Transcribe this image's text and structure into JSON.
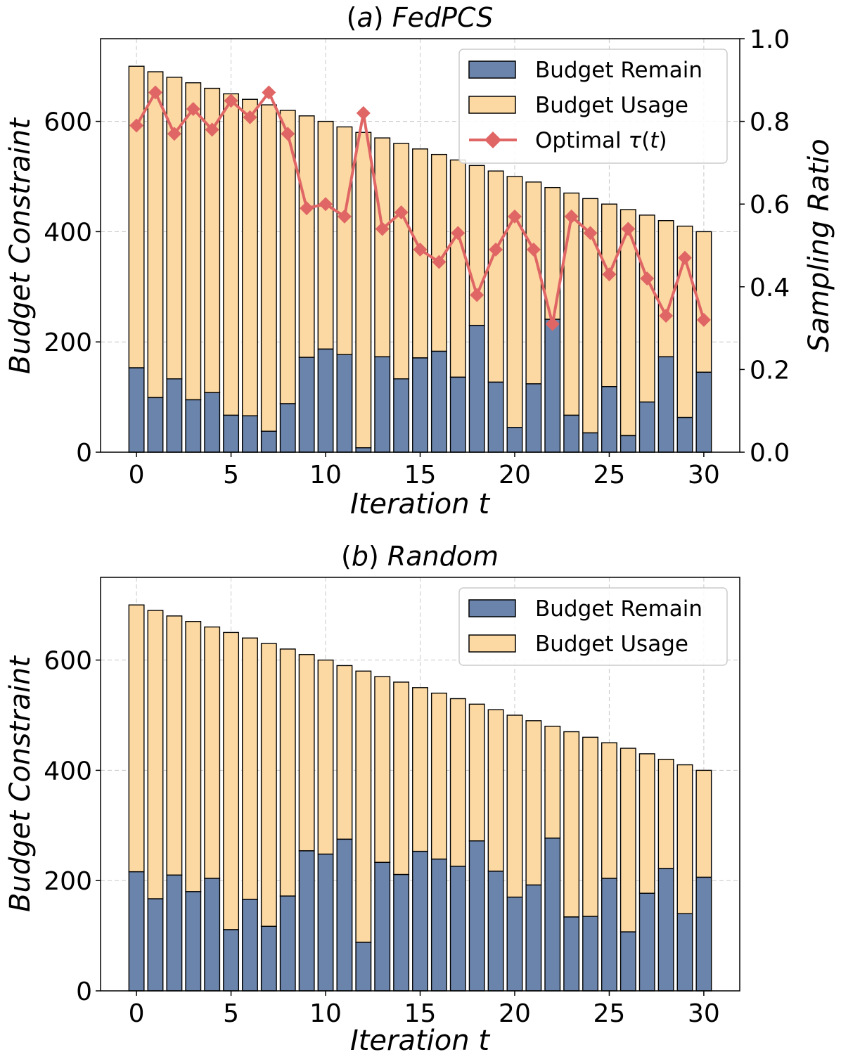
{
  "chart_data": [
    {
      "type": "bar",
      "title_prefix": "(",
      "title_letter": "a",
      "title_suffix": ") ",
      "title_name": "FedPCS",
      "xlabel": "Iteration t",
      "ylabel": "Budget Constraint",
      "ylabel_right": "Sampling Ratio",
      "xlim": [
        -1.9,
        31.9
      ],
      "ylim": [
        0,
        750
      ],
      "ylim_right": [
        0,
        1.0
      ],
      "x_ticks": [
        "0",
        "5",
        "10",
        "15",
        "20",
        "25",
        "30"
      ],
      "y_ticks": [
        "0",
        "200",
        "400",
        "600"
      ],
      "y_ticks_right": [
        "0.0",
        "0.2",
        "0.4",
        "0.6",
        "0.8",
        "1.0"
      ],
      "grid": true,
      "legend_position": "top-right",
      "x": [
        0,
        1,
        2,
        3,
        4,
        5,
        6,
        7,
        8,
        9,
        10,
        11,
        12,
        13,
        14,
        15,
        16,
        17,
        18,
        19,
        20,
        21,
        22,
        23,
        24,
        25,
        26,
        27,
        28,
        29,
        30
      ],
      "series": [
        {
          "name": "Budget Remain",
          "color": "#6b84ab",
          "values": [
            153,
            99,
            133,
            95,
            108,
            67,
            66,
            38,
            88,
            172,
            187,
            177,
            8,
            173,
            133,
            171,
            183,
            136,
            230,
            127,
            45,
            124,
            241,
            67,
            35,
            119,
            30,
            91,
            173,
            63,
            145
          ]
        },
        {
          "name": "Budget Usage",
          "color": "#fcd9a2",
          "stack_total": [
            700,
            690,
            680,
            670,
            660,
            650,
            640,
            630,
            620,
            610,
            600,
            590,
            580,
            570,
            560,
            550,
            540,
            530,
            520,
            510,
            500,
            490,
            480,
            470,
            460,
            450,
            440,
            430,
            420,
            410,
            400
          ]
        },
        {
          "name_prefix": "Optimal ",
          "name_symbol": "τ",
          "name_paren_open": "(",
          "name_var": "t",
          "name_paren_close": ")",
          "type": "line",
          "axis": "right",
          "color": "#e06666",
          "marker": "diamond",
          "values": [
            0.79,
            0.87,
            0.77,
            0.83,
            0.78,
            0.85,
            0.81,
            0.87,
            0.77,
            0.59,
            0.6,
            0.57,
            0.82,
            0.54,
            0.58,
            0.49,
            0.46,
            0.53,
            0.38,
            0.49,
            0.57,
            0.49,
            0.31,
            0.57,
            0.53,
            0.43,
            0.54,
            0.42,
            0.33,
            0.47,
            0.32
          ]
        }
      ]
    },
    {
      "type": "bar",
      "title_prefix": "(",
      "title_letter": "b",
      "title_suffix": ") ",
      "title_name": "Random",
      "xlabel": "Iteration t",
      "ylabel": "Budget Constraint",
      "xlim": [
        -1.9,
        31.9
      ],
      "ylim": [
        0,
        750
      ],
      "x_ticks": [
        "0",
        "5",
        "10",
        "15",
        "20",
        "25",
        "30"
      ],
      "y_ticks": [
        "0",
        "200",
        "400",
        "600"
      ],
      "grid": true,
      "legend_position": "top-right",
      "x": [
        0,
        1,
        2,
        3,
        4,
        5,
        6,
        7,
        8,
        9,
        10,
        11,
        12,
        13,
        14,
        15,
        16,
        17,
        18,
        19,
        20,
        21,
        22,
        23,
        24,
        25,
        26,
        27,
        28,
        29,
        30
      ],
      "series": [
        {
          "name": "Budget Remain",
          "color": "#6b84ab",
          "values": [
            216,
            167,
            210,
            180,
            204,
            111,
            166,
            117,
            172,
            254,
            248,
            275,
            88,
            233,
            211,
            253,
            239,
            226,
            272,
            217,
            170,
            192,
            277,
            134,
            135,
            204,
            107,
            177,
            222,
            140,
            206
          ]
        },
        {
          "name": "Budget Usage",
          "color": "#fcd9a2",
          "stack_total": [
            700,
            690,
            680,
            670,
            660,
            650,
            640,
            630,
            620,
            610,
            600,
            590,
            580,
            570,
            560,
            550,
            540,
            530,
            520,
            510,
            500,
            490,
            480,
            470,
            460,
            450,
            440,
            430,
            420,
            410,
            400
          ]
        }
      ]
    }
  ]
}
